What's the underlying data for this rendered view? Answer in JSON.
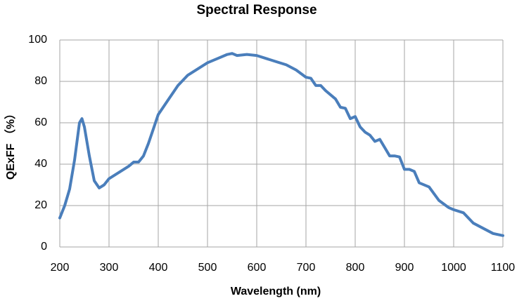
{
  "chart_data": {
    "type": "line",
    "title": "Spectral Response",
    "x_label": "Wavelength (nm)",
    "y_label": "QExFF （%）",
    "x": [
      200,
      210,
      220,
      230,
      240,
      245,
      250,
      260,
      270,
      280,
      290,
      300,
      320,
      340,
      350,
      360,
      370,
      380,
      390,
      400,
      420,
      440,
      460,
      480,
      500,
      520,
      540,
      550,
      560,
      580,
      600,
      620,
      640,
      660,
      680,
      700,
      710,
      720,
      730,
      740,
      760,
      770,
      780,
      790,
      800,
      810,
      820,
      830,
      840,
      850,
      860,
      870,
      880,
      890,
      900,
      910,
      920,
      930,
      950,
      970,
      990,
      1000,
      1020,
      1040,
      1060,
      1080,
      1100
    ],
    "series": [
      {
        "name": "QExFF",
        "color": "#4a7ebb",
        "values": [
          14,
          20,
          28,
          42,
          60,
          62,
          58,
          44,
          32,
          28.5,
          30,
          33,
          36,
          39,
          41,
          41,
          44,
          50,
          57,
          64,
          71,
          78,
          83,
          86,
          89,
          91,
          93,
          93.5,
          92.5,
          93,
          92.5,
          91,
          89.5,
          88,
          85.5,
          82,
          81.5,
          78,
          78,
          75.5,
          71.5,
          67.5,
          67,
          62,
          63,
          58,
          55.5,
          54,
          51,
          52,
          48,
          44,
          44,
          43.5,
          37.5,
          37.5,
          36.5,
          31,
          29,
          22.5,
          19,
          18,
          16.5,
          11.5,
          9,
          6.5,
          5.5
        ]
      }
    ],
    "xlim": [
      200,
      1100
    ],
    "xticks": [
      200,
      300,
      400,
      500,
      600,
      700,
      800,
      900,
      1000,
      1100
    ],
    "ylim": [
      0,
      100
    ],
    "yticks": [
      0,
      20,
      40,
      60,
      80,
      100
    ],
    "grid": true
  }
}
